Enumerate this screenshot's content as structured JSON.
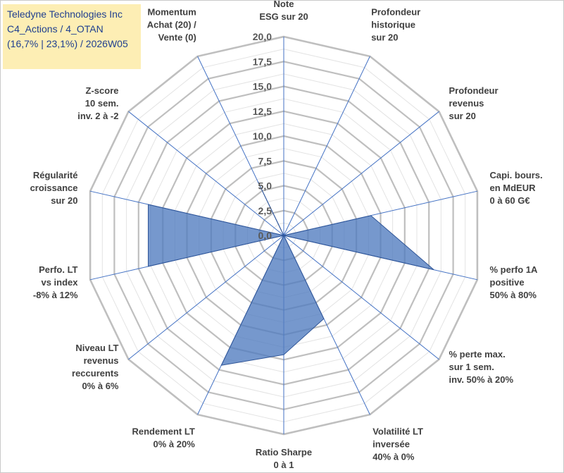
{
  "colors": {
    "grid": "#bfbfbf",
    "spoke": "#4472c4",
    "fill": "#4f7bbf",
    "title_bg": "#fdeeb4",
    "title_text": "#1f3f8f"
  },
  "header": {
    "line1": "Teledyne Technologies Inc",
    "line2": "C4_Actions / 4_OTAN",
    "line3": "(16,7% | 23,1%) / 2026W05"
  },
  "chart_data": {
    "type": "radar",
    "r_range": [
      0,
      20
    ],
    "tick_values": [
      0,
      2.5,
      5,
      7.5,
      10,
      12.5,
      15,
      17.5,
      20
    ],
    "tick_labels": [
      "0,0",
      "2,5",
      "5,0",
      "7,5",
      "10,0",
      "12,5",
      "15,0",
      "17,5",
      "20,0"
    ],
    "axes": [
      {
        "label": [
          "Note",
          "ESG sur 20"
        ],
        "value": 0
      },
      {
        "label": [
          "Profondeur",
          "historique",
          "sur 20"
        ],
        "value": 0
      },
      {
        "label": [
          "Profondeur",
          "revenus",
          "sur 20"
        ],
        "value": 0
      },
      {
        "label": [
          "Capi. bours.",
          "en MdEUR",
          "0 à 60 G€"
        ],
        "value": 9
      },
      {
        "label": [
          "% perfo 1A",
          "positive",
          "50% à 80%"
        ],
        "value": 15.5
      },
      {
        "label": [
          "% perte max.",
          "sur 1 sem.",
          "inv. 50% à 20%"
        ],
        "value": 0
      },
      {
        "label": [
          "Volatilité LT",
          "inversée",
          "40% à 0%"
        ],
        "value": 9.3
      },
      {
        "label": [
          "Ratio Sharpe",
          "0 à 1"
        ],
        "value": 12
      },
      {
        "label": [
          "Rendement LT",
          "0% à 20%"
        ],
        "value": 14.5
      },
      {
        "label": [
          "Niveau LT",
          "revenus",
          "reccurents",
          "0% à 6%"
        ],
        "value": 0
      },
      {
        "label": [
          "Perfo. LT",
          "vs index",
          "-8% à 12%"
        ],
        "value": 14
      },
      {
        "label": [
          "Régularité",
          "croissance",
          "sur 20"
        ],
        "value": 14
      },
      {
        "label": [
          "Z-score",
          "10 sem.",
          "inv. 2 à -2"
        ],
        "value": 0
      },
      {
        "label": [
          "Momentum",
          "Achat (20) /",
          "Vente (0)"
        ],
        "value": 6
      }
    ]
  }
}
